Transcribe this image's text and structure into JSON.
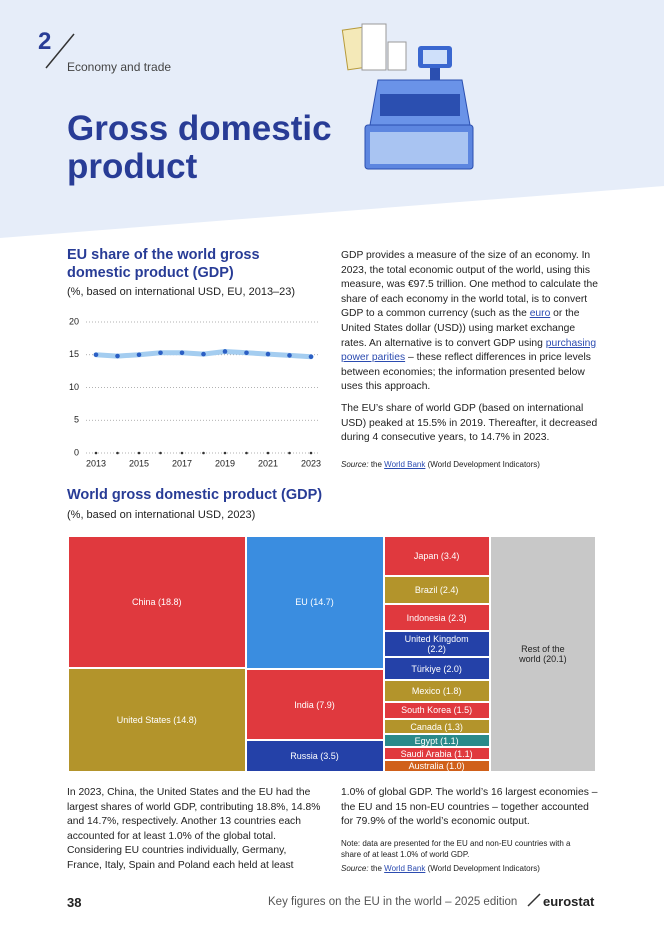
{
  "header": {
    "chapter": "2",
    "section": "Economy and trade",
    "title": "Gross domestic product"
  },
  "chart_data": [
    {
      "type": "line",
      "title": "EU share of the world gross domestic product (GDP)",
      "subtitle": "(%, based on international USD, EU, 2013–23)",
      "x": [
        2013,
        2014,
        2015,
        2016,
        2017,
        2018,
        2019,
        2020,
        2021,
        2022,
        2023
      ],
      "values": [
        15.0,
        14.8,
        15.0,
        15.3,
        15.3,
        15.1,
        15.5,
        15.3,
        15.1,
        14.9,
        14.7
      ],
      "color": "#a4cdf0",
      "marker_color": "#2b5fc4",
      "xlim": [
        2013,
        2023
      ],
      "xticks": [
        2013,
        2015,
        2017,
        2019,
        2021,
        2023
      ],
      "ylim": [
        0,
        20
      ],
      "yticks": [
        0,
        5,
        10,
        15,
        20
      ],
      "grid": true
    },
    {
      "type": "treemap",
      "title": "World gross domestic product (GDP)",
      "subtitle": "(%, based on international USD, 2023)",
      "labels": [
        "China (18.8)",
        "United States (14.8)",
        "EU (14.7)",
        "India (7.9)",
        "Russia (3.5)",
        "Japan (3.4)",
        "Brazil (2.4)",
        "Indonesia (2.3)",
        "United Kingdom (2.2)",
        "Türkiye (2.0)",
        "Mexico (1.8)",
        "South Korea (1.5)",
        "Canada (1.3)",
        "Egypt (1.1)",
        "Saudi Arabia (1.1)",
        "Australia (1.0)",
        "Rest of the world (20.1)"
      ],
      "values": [
        18.8,
        14.8,
        14.7,
        7.9,
        3.5,
        3.4,
        2.4,
        2.3,
        2.2,
        2.0,
        1.8,
        1.5,
        1.3,
        1.1,
        1.1,
        1.0,
        20.1
      ],
      "colors": [
        "#e0393e",
        "#b3942b",
        "#3a8de0",
        "#e0393e",
        "#2441a8",
        "#e0393e",
        "#b3942b",
        "#e0393e",
        "#2441a8",
        "#2441a8",
        "#b3942b",
        "#e0393e",
        "#b3942b",
        "#2a8a8a",
        "#e0393e",
        "#d0601a",
        "#c8c8c8"
      ]
    }
  ],
  "intro": {
    "p1": [
      "GDP provides a measure of the size of an economy. In 2023, the total economic output of the world, using this measure, was €97.5 trillion. One method to calculate the share of each economy in the world total, is to convert GDP to a common currency (such as the",
      "euro",
      "or the United States dollar (USD)) using market exchange rates. An alternative is to convert GDP using",
      "purchasing power parities",
      "– these reflect differences in price levels between economies; the information presented below uses this approach."
    ],
    "p2": "The EU’s share of world GDP (based on international USD) peaked at 15.5% in 2019. Thereafter, it decreased during 4 consecutive years, to 14.7% in 2023.",
    "source": {
      "label": "Source:",
      "text": "the",
      "link": "World Bank",
      "rest": "(World Development Indicators)"
    }
  },
  "bottom": {
    "left": "In 2023, China, the United States and the EU had the largest shares of world GDP, contributing 18.8%, 14.8% and 14.7%, respectively. Another 13 countries each accounted for at least 1.0% of the global total. Considering EU countries individually, Germany, France, Italy, Spain and Poland each held at least",
    "right": "1.0% of global GDP. The world’s 16 largest economies – the EU and 15 non-EU countries – together accounted for 79.9% of the world’s economic output.",
    "note": "Note: data are presented for the EU and non-EU countries with a share of at least 1.0% of world GDP.",
    "source": {
      "label": "Source:",
      "text": "the",
      "link": "World Bank",
      "rest": "(World Development Indicators)"
    }
  },
  "footer": {
    "page": "38",
    "publication": "Key figures on the EU in the world – 2025 edition",
    "brand": "eurostat"
  }
}
